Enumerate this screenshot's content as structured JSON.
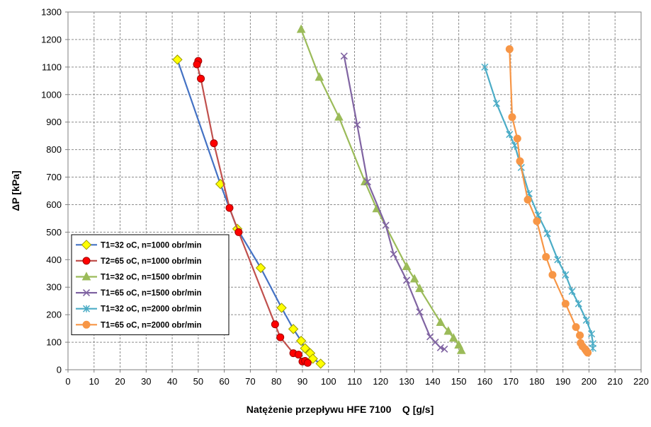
{
  "chart_data": {
    "type": "line",
    "title": "",
    "xlabel": "Natężenie przepływu HFE 7100    Q [g/s]",
    "ylabel": "ΔP [kPa]",
    "xlim": [
      0,
      220
    ],
    "ylim": [
      0,
      1300
    ],
    "x_ticks": [
      0,
      10,
      20,
      30,
      40,
      50,
      60,
      70,
      80,
      90,
      100,
      110,
      120,
      130,
      140,
      150,
      160,
      170,
      180,
      190,
      200,
      210,
      220
    ],
    "y_ticks": [
      0,
      100,
      200,
      300,
      400,
      500,
      600,
      700,
      800,
      900,
      1000,
      1100,
      1200,
      1300
    ],
    "grid": true,
    "legend_position": "bottom-left",
    "series": [
      {
        "name": "T1=32 oC, n=1000 obr/min",
        "color": "#4472C4",
        "marker_fill": "#FFFF00",
        "marker_stroke": "#9A9A00",
        "marker": "diamond",
        "points": [
          [
            42,
            1127
          ],
          [
            58.5,
            675
          ],
          [
            65,
            512
          ],
          [
            74,
            370
          ],
          [
            82,
            225
          ],
          [
            86.5,
            148
          ],
          [
            89.5,
            105
          ],
          [
            91,
            78
          ],
          [
            93,
            60
          ],
          [
            94,
            40
          ],
          [
            97,
            22
          ]
        ]
      },
      {
        "name": "T2=65 oC, n=1000 obr/min",
        "color": "#C0504D",
        "marker_fill": "#FF0000",
        "marker_stroke": "#A00000",
        "marker": "circle",
        "points": [
          [
            50,
            1122
          ],
          [
            49.5,
            1110
          ],
          [
            51,
            1058
          ],
          [
            56,
            823
          ],
          [
            62,
            588
          ],
          [
            65.5,
            500
          ],
          [
            79.5,
            165
          ],
          [
            81.5,
            118
          ],
          [
            86.5,
            60
          ],
          [
            88.5,
            55
          ],
          [
            90,
            30
          ],
          [
            91,
            32
          ],
          [
            92,
            25
          ]
        ]
      },
      {
        "name": "T1=32 oC, n=1500 obr/min",
        "color": "#9BBB59",
        "marker_fill": "#9BBB59",
        "marker_stroke": "#9BBB59",
        "marker": "triangle",
        "points": [
          [
            89.5,
            1237
          ],
          [
            96.5,
            1063
          ],
          [
            104,
            918
          ],
          [
            114,
            683
          ],
          [
            118.5,
            585
          ],
          [
            130,
            375
          ],
          [
            133,
            330
          ],
          [
            135,
            295
          ],
          [
            143,
            172
          ],
          [
            146,
            140
          ],
          [
            148,
            115
          ],
          [
            150,
            90
          ],
          [
            151,
            70
          ]
        ]
      },
      {
        "name": "T1=65 oC, n=1500 obr/min",
        "color": "#8064A2",
        "marker_fill": "#8064A2",
        "marker_stroke": "#8064A2",
        "marker": "x",
        "points": [
          [
            106,
            1140
          ],
          [
            111,
            890
          ],
          [
            115,
            683
          ],
          [
            122,
            525
          ],
          [
            125,
            420
          ],
          [
            130,
            325
          ],
          [
            135,
            210
          ],
          [
            139,
            120
          ],
          [
            141,
            100
          ],
          [
            143,
            80
          ],
          [
            144.5,
            75
          ]
        ]
      },
      {
        "name": "T1=32 oC, n=2000 obr/min",
        "color": "#4BACC6",
        "marker_fill": "#4BACC6",
        "marker_stroke": "#4BACC6",
        "marker": "asterisk",
        "points": [
          [
            160,
            1100
          ],
          [
            164.5,
            968
          ],
          [
            169.5,
            855
          ],
          [
            171.5,
            815
          ],
          [
            174,
            735
          ],
          [
            177,
            640
          ],
          [
            180.5,
            562
          ],
          [
            184,
            495
          ],
          [
            188,
            400
          ],
          [
            191,
            345
          ],
          [
            193.5,
            285
          ],
          [
            196,
            240
          ],
          [
            199,
            180
          ],
          [
            201,
            130
          ],
          [
            201.5,
            95
          ],
          [
            201.5,
            78
          ]
        ]
      },
      {
        "name": "T1=65 oC, n=2000 obr/min",
        "color": "#F79646",
        "marker_fill": "#F79646",
        "marker_stroke": "#F79646",
        "marker": "circle",
        "points": [
          [
            169.5,
            1165
          ],
          [
            170.5,
            918
          ],
          [
            172.5,
            840
          ],
          [
            173.5,
            758
          ],
          [
            176.5,
            618
          ],
          [
            180,
            540
          ],
          [
            183.5,
            410
          ],
          [
            186,
            345
          ],
          [
            191,
            240
          ],
          [
            195,
            155
          ],
          [
            196.5,
            125
          ],
          [
            196.8,
            97
          ],
          [
            197.5,
            85
          ],
          [
            198.5,
            75
          ],
          [
            199,
            68
          ],
          [
            199.5,
            62
          ]
        ]
      }
    ]
  }
}
